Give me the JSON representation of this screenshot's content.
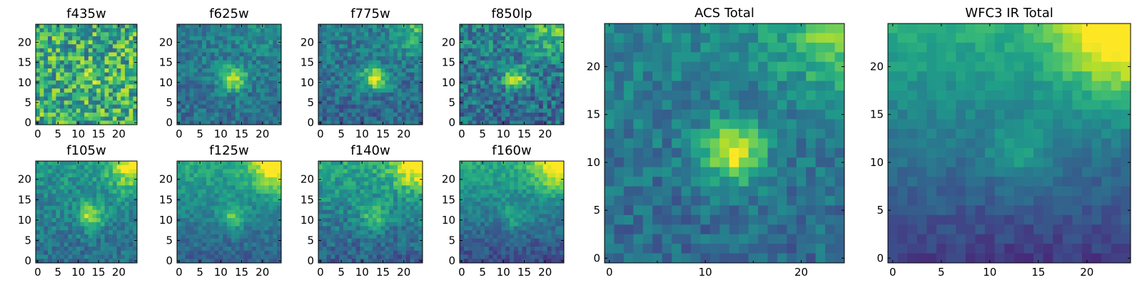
{
  "chart_data": [
    {
      "type": "heatmap",
      "title": "f435w",
      "grid": 25,
      "xticks": [
        0,
        5,
        10,
        15,
        20
      ],
      "yticks": [
        0,
        5,
        10,
        15,
        20
      ],
      "colormap": "viridis",
      "features": {
        "noise": 0.3,
        "bias": 0.62,
        "source": 0.1,
        "corner": 0.0,
        "gradient": 0.0
      }
    },
    {
      "type": "heatmap",
      "title": "f625w",
      "grid": 25,
      "xticks": [
        0,
        5,
        10,
        15,
        20
      ],
      "yticks": [
        0,
        5,
        10,
        15,
        20
      ],
      "colormap": "viridis",
      "features": {
        "noise": 0.14,
        "bias": 0.4,
        "source": 0.55,
        "corner": 0.08,
        "gradient": 0.08
      }
    },
    {
      "type": "heatmap",
      "title": "f775w",
      "grid": 25,
      "xticks": [
        0,
        5,
        10,
        15,
        20
      ],
      "yticks": [
        0,
        5,
        10,
        15,
        20
      ],
      "colormap": "viridis",
      "features": {
        "noise": 0.15,
        "bias": 0.38,
        "source": 0.55,
        "corner": 0.28,
        "gradient": 0.1
      }
    },
    {
      "type": "heatmap",
      "title": "f850lp",
      "grid": 25,
      "xticks": [
        0,
        5,
        10,
        15,
        20
      ],
      "yticks": [
        0,
        5,
        10,
        15,
        20
      ],
      "colormap": "viridis",
      "features": {
        "noise": 0.2,
        "bias": 0.4,
        "source": 0.45,
        "corner": 0.35,
        "gradient": 0.1
      }
    },
    {
      "type": "heatmap",
      "title": "f105w",
      "grid": 25,
      "xticks": [
        0,
        5,
        10,
        15,
        20
      ],
      "yticks": [
        0,
        5,
        10,
        15,
        20
      ],
      "colormap": "viridis",
      "features": {
        "noise": 0.13,
        "bias": 0.45,
        "source": 0.45,
        "corner": 0.5,
        "gradient": 0.18
      }
    },
    {
      "type": "heatmap",
      "title": "f125w",
      "grid": 25,
      "xticks": [
        0,
        5,
        10,
        15,
        20
      ],
      "yticks": [
        0,
        5,
        10,
        15,
        20
      ],
      "colormap": "viridis",
      "features": {
        "noise": 0.1,
        "bias": 0.45,
        "source": 0.3,
        "corner": 0.55,
        "gradient": 0.3
      }
    },
    {
      "type": "heatmap",
      "title": "f140w",
      "grid": 25,
      "xticks": [
        0,
        5,
        10,
        15,
        20
      ],
      "yticks": [
        0,
        5,
        10,
        15,
        20
      ],
      "colormap": "viridis",
      "features": {
        "noise": 0.13,
        "bias": 0.45,
        "source": 0.3,
        "corner": 0.55,
        "gradient": 0.3
      }
    },
    {
      "type": "heatmap",
      "title": "f160w",
      "grid": 25,
      "xticks": [
        0,
        5,
        10,
        15,
        20
      ],
      "yticks": [
        0,
        5,
        10,
        15,
        20
      ],
      "colormap": "viridis",
      "features": {
        "noise": 0.1,
        "bias": 0.42,
        "source": 0.22,
        "corner": 0.55,
        "gradient": 0.38
      }
    },
    {
      "type": "heatmap",
      "title": "ACS Total",
      "grid": 25,
      "xticks": [
        0,
        10,
        20
      ],
      "xticks_minor": [
        5,
        15
      ],
      "yticks": [
        0,
        5,
        10,
        15,
        20
      ],
      "colormap": "viridis",
      "features": {
        "noise": 0.12,
        "bias": 0.4,
        "source": 0.6,
        "corner": 0.35,
        "gradient": 0.12
      }
    },
    {
      "type": "heatmap",
      "title": "WFC3 IR Total",
      "grid": 25,
      "xticks": [
        0,
        5,
        10,
        15,
        20
      ],
      "yticks": [
        0,
        5,
        10,
        15,
        20
      ],
      "colormap": "viridis",
      "features": {
        "noise": 0.06,
        "bias": 0.4,
        "source": 0.2,
        "corner": 0.6,
        "gradient": 0.45
      }
    }
  ]
}
